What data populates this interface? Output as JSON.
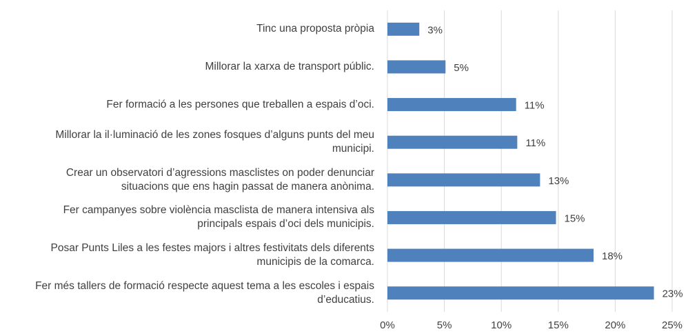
{
  "chart_data": {
    "type": "bar",
    "orientation": "horizontal",
    "categories": [
      "Tinc una proposta pròpia",
      "Millorar la xarxa de transport públic.",
      "Fer formació a les persones que treballen a espais d’oci.",
      "Millorar la il·luminació de les zones fosques d’alguns punts del meu municipi.",
      "Crear un observatori d’agressions masclistes on poder denunciar situacions que ens hagin passat de manera anònima.",
      "Fer campanyes sobre violència masclista de manera intensiva als principals espais d’oci dels municipis.",
      "Posar Punts Liles a les festes majors i altres festivitats dels diferents municipis de la comarca.",
      "Fer més tallers de formació respecte aquest tema a les escoles i espais d’educatius."
    ],
    "values": [
      2.8,
      5.1,
      11.3,
      11.4,
      13.4,
      14.8,
      18.1,
      23.4
    ],
    "value_labels": [
      "3%",
      "5%",
      "11%",
      "11%",
      "13%",
      "15%",
      "18%",
      "23%"
    ],
    "color": "#4f81bd",
    "xlim": [
      0,
      25
    ],
    "xticks": [
      {
        "value": 0,
        "label": "0%"
      },
      {
        "value": 5,
        "label": "5%"
      },
      {
        "value": 10,
        "label": "10%"
      },
      {
        "value": 15,
        "label": "15%"
      },
      {
        "value": 20,
        "label": "20%"
      },
      {
        "value": 25,
        "label": "25%"
      }
    ],
    "grid": true
  }
}
